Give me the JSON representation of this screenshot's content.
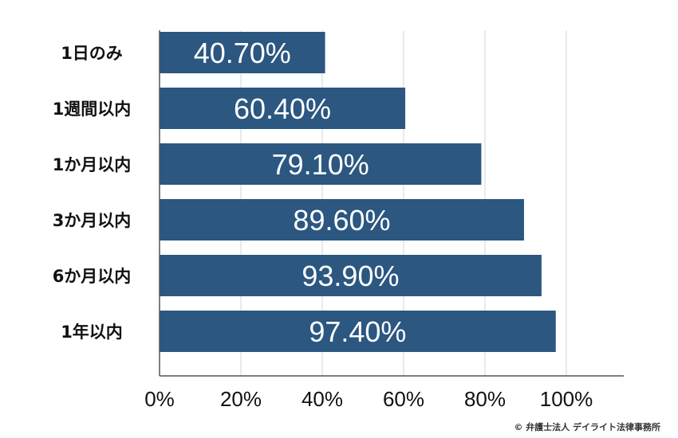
{
  "chart_data": {
    "type": "bar",
    "orientation": "horizontal",
    "categories": [
      "1日のみ",
      "1週間以内",
      "1か月以内",
      "3か月以内",
      "6か月以内",
      "1年以内"
    ],
    "values": [
      40.7,
      60.4,
      79.1,
      89.6,
      93.9,
      97.4
    ],
    "value_labels": [
      "40.70%",
      "60.40%",
      "79.10%",
      "89.60%",
      "93.90%",
      "97.40%"
    ],
    "xlim": [
      0,
      100
    ],
    "x_ticks": [
      "0%",
      "20%",
      "40%",
      "60%",
      "80%",
      "100%"
    ],
    "grid": true,
    "colors": {
      "bar": "#2b5780",
      "grid": "#d4d4d4"
    }
  },
  "footer": {
    "copyright": "© 弁護士法人 デイライト法律事務所"
  }
}
